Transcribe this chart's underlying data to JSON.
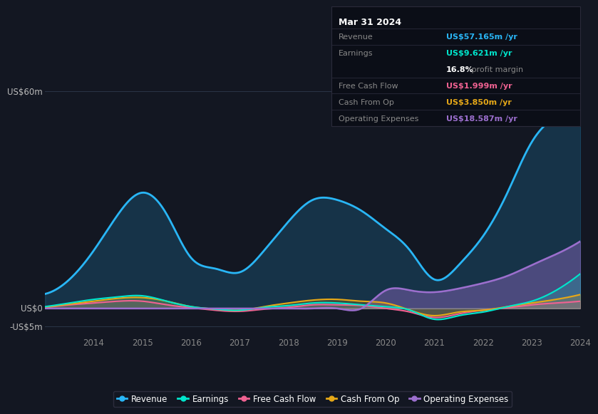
{
  "background_color": "#131722",
  "plot_bg_color": "#131722",
  "years": [
    2013.0,
    2013.5,
    2014.0,
    2014.5,
    2015.0,
    2015.5,
    2016.0,
    2016.5,
    2017.0,
    2017.5,
    2018.0,
    2018.5,
    2019.0,
    2019.5,
    2020.0,
    2020.5,
    2021.0,
    2021.5,
    2022.0,
    2022.5,
    2023.0,
    2023.5,
    2024.0
  ],
  "revenue": [
    4,
    8,
    16,
    26,
    32,
    26,
    14,
    11,
    10,
    16,
    24,
    30,
    30,
    27,
    22,
    16,
    8,
    12,
    20,
    32,
    46,
    53,
    57
  ],
  "earnings": [
    0.5,
    1.5,
    2.5,
    3.2,
    3.5,
    2.0,
    0.5,
    -0.2,
    -0.5,
    0.3,
    0.8,
    1.5,
    1.5,
    1.0,
    0.5,
    -0.5,
    -3.0,
    -2.0,
    -1.0,
    0.5,
    2.0,
    5.0,
    9.621
  ],
  "free_cash_flow": [
    0.2,
    1.0,
    1.5,
    2.0,
    2.0,
    1.0,
    0.2,
    -0.5,
    -0.8,
    -0.2,
    0.3,
    1.0,
    1.0,
    0.8,
    0.0,
    -1.0,
    -2.5,
    -1.5,
    -0.5,
    0.2,
    1.0,
    1.5,
    1.999
  ],
  "cash_from_op": [
    0.3,
    1.2,
    2.0,
    2.8,
    3.0,
    2.0,
    0.5,
    -0.2,
    -0.5,
    0.5,
    1.5,
    2.3,
    2.5,
    2.0,
    1.5,
    -0.5,
    -2.0,
    -1.0,
    -0.5,
    0.5,
    1.5,
    2.5,
    3.85
  ],
  "operating_expenses": [
    0,
    0,
    0,
    0,
    0,
    0,
    0,
    0,
    0,
    0,
    0,
    0,
    0,
    0,
    5.0,
    5.0,
    4.5,
    5.5,
    7.0,
    9.0,
    12.0,
    15.0,
    18.587
  ],
  "revenue_color": "#29b6f6",
  "earnings_color": "#00e5cc",
  "free_cash_flow_color": "#f06292",
  "cash_from_op_color": "#e6a817",
  "operating_expenses_color": "#9c6fce",
  "grid_color": "#2a3548",
  "text_color": "#888888",
  "label_color": "#bbbbbb",
  "info_box": {
    "date": "Mar 31 2024",
    "revenue_val": "US$57.165m",
    "earnings_val": "US$9.621m",
    "profit_margin": "16.8%",
    "fcf_val": "US$1.999m",
    "cash_op_val": "US$3.850m",
    "op_exp_val": "US$18.587m"
  },
  "x_tick_years": [
    2014,
    2015,
    2016,
    2017,
    2018,
    2019,
    2020,
    2021,
    2022,
    2023,
    2024
  ],
  "ylim": [
    -7,
    68
  ],
  "y_labels": [
    {
      "val": 60,
      "text": "US$60m"
    },
    {
      "val": 0,
      "text": "US$0"
    },
    {
      "val": -5,
      "text": "-US$5m"
    }
  ]
}
